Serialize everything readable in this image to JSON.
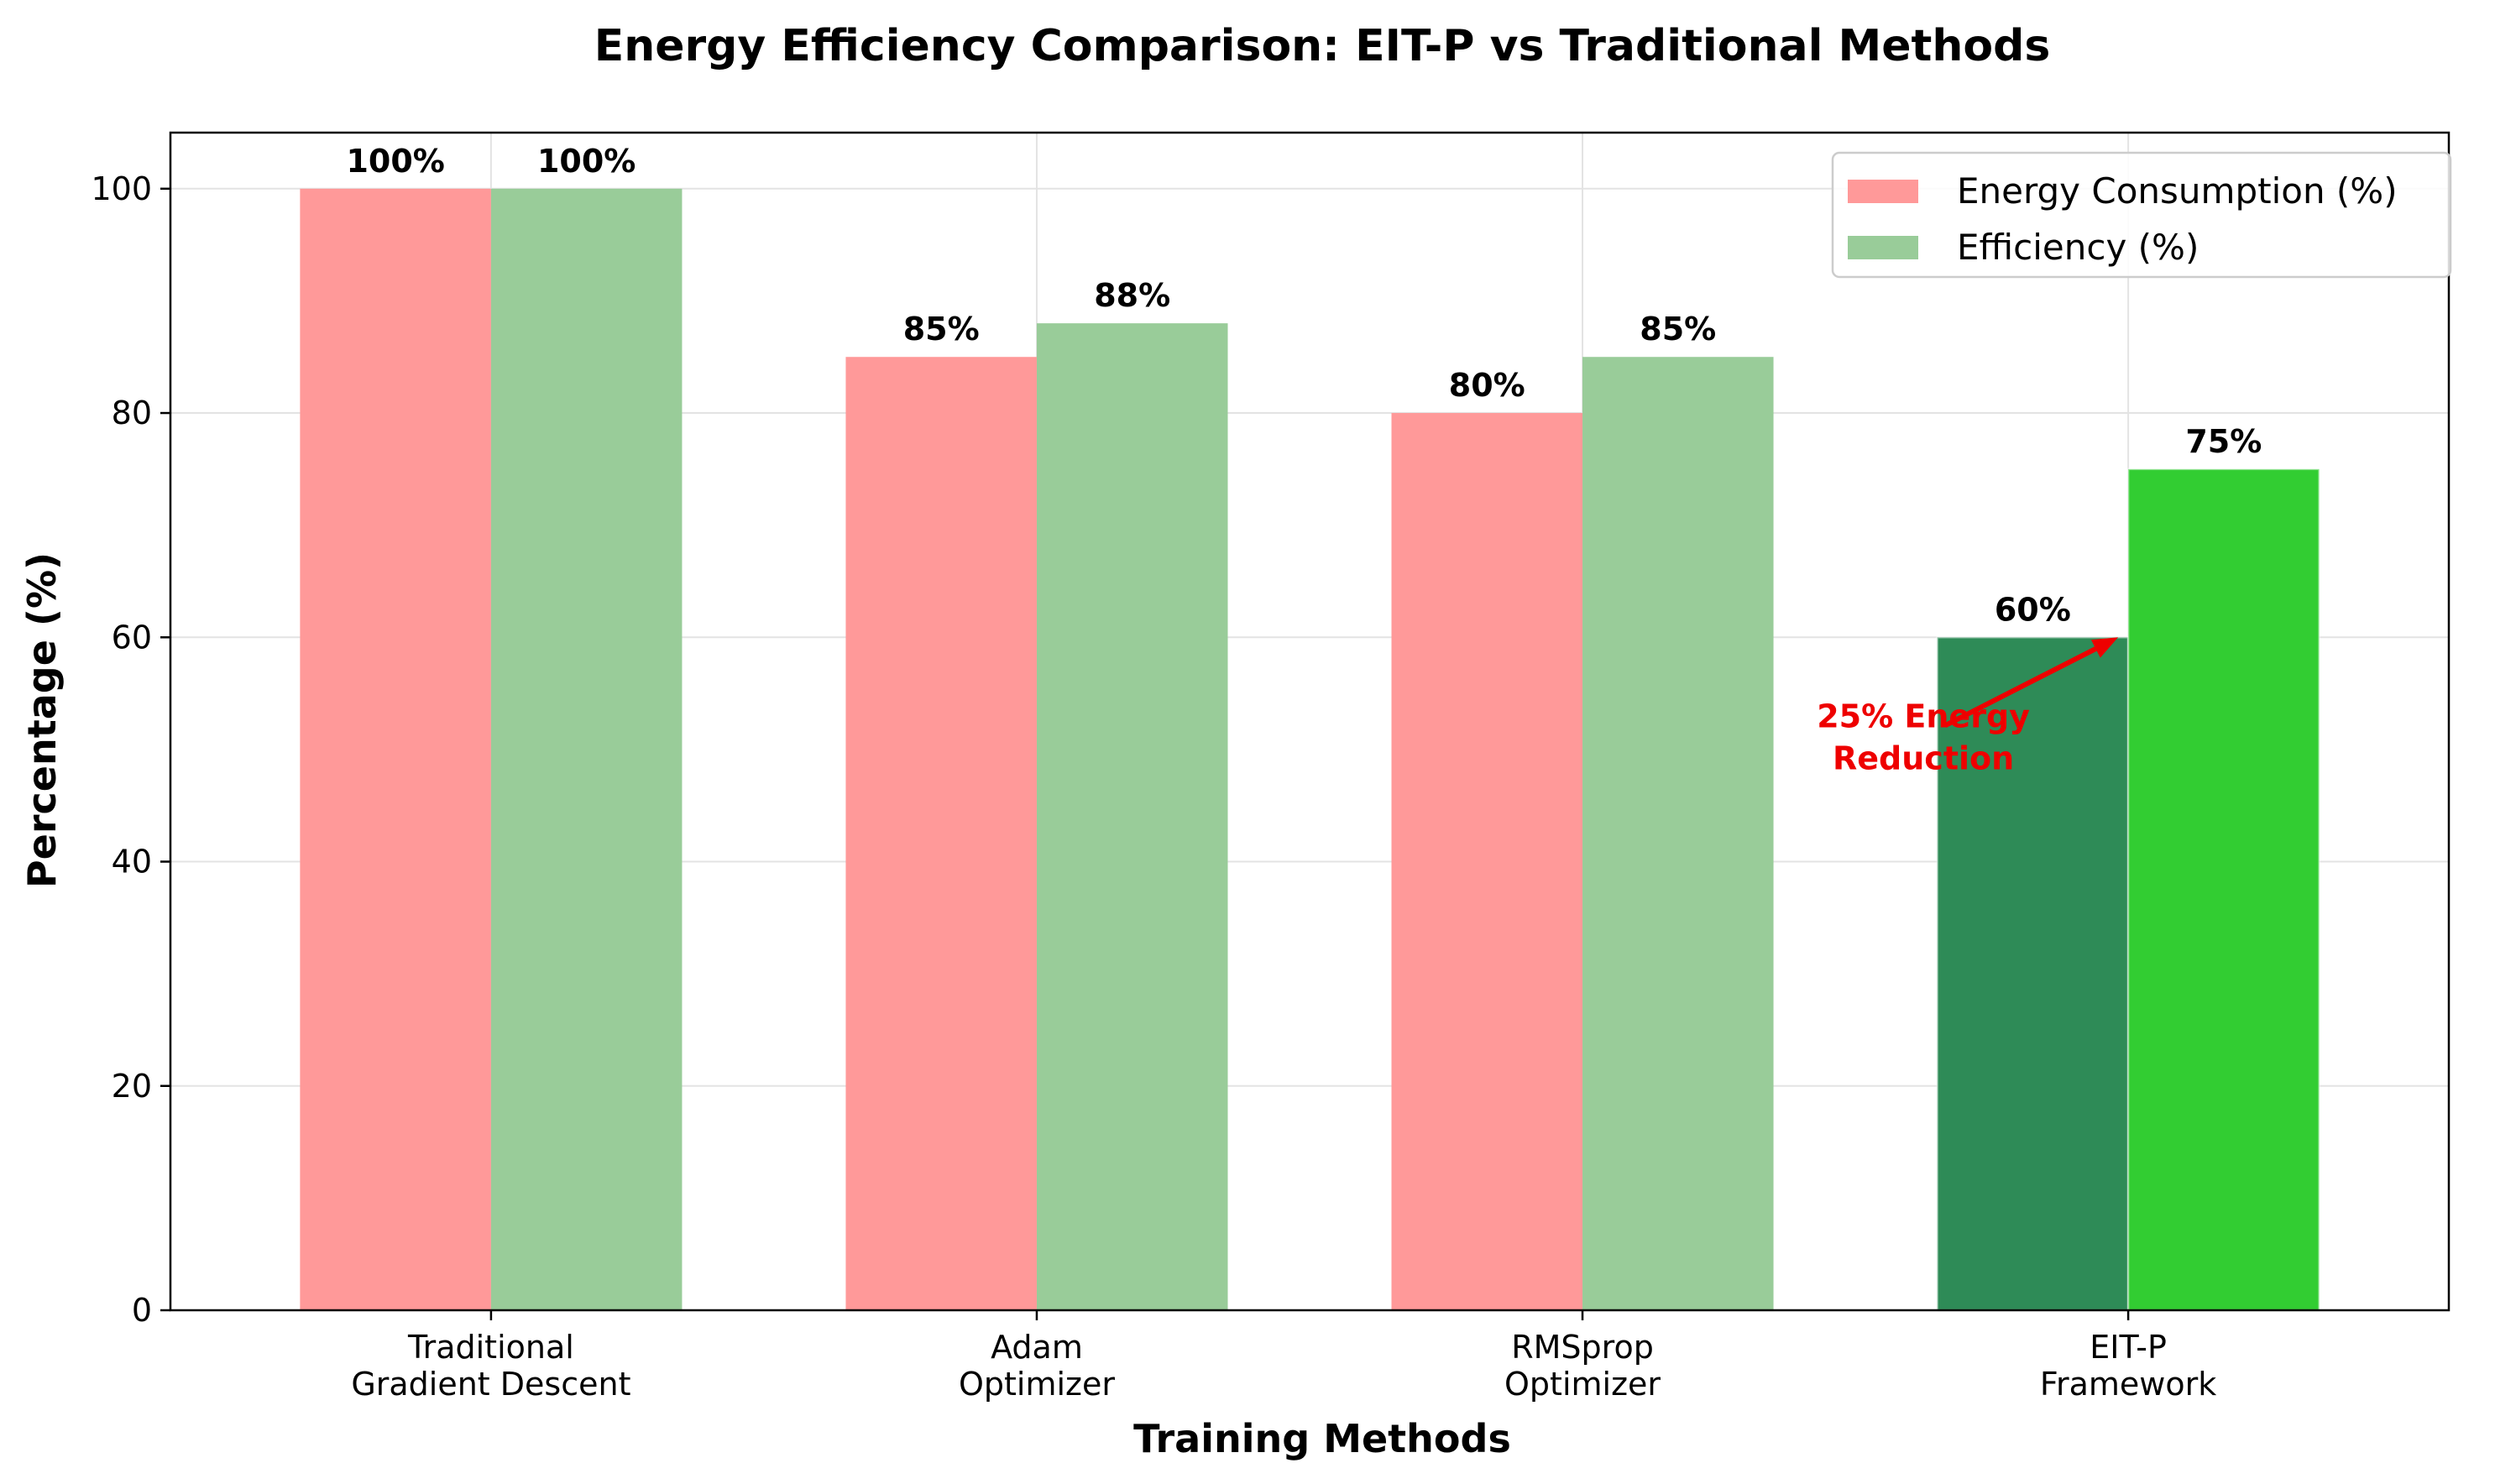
{
  "chart_data": {
    "type": "bar",
    "title": "Energy Efficiency Comparison: EIT-P vs Traditional Methods",
    "xlabel": "Training Methods",
    "ylabel": "Percentage (%)",
    "ylim": [
      0,
      105
    ],
    "yticks": [
      0,
      20,
      40,
      60,
      80,
      100
    ],
    "categories": [
      [
        "Traditional",
        "Gradient Descent"
      ],
      [
        "Adam",
        "Optimizer"
      ],
      [
        "RMSprop",
        "Optimizer"
      ],
      [
        "EIT-P",
        "Framework"
      ]
    ],
    "series": [
      {
        "name": "Energy Consumption (%)",
        "values": [
          100,
          85,
          80,
          60
        ],
        "labels": [
          "100%",
          "85%",
          "80%",
          "60%"
        ],
        "color": "#ff9999",
        "highlight_color": "#2e8b57"
      },
      {
        "name": "Efficiency (%)",
        "values": [
          100,
          88,
          85,
          75
        ],
        "labels": [
          "100%",
          "88%",
          "85%",
          "75%"
        ],
        "color": "#99cc99",
        "highlight_color": "#32cd32"
      }
    ],
    "highlight_category_index": 3,
    "grid": true,
    "legend": "upper-right",
    "annotation": {
      "lines": [
        "25% Energy",
        "Reduction"
      ],
      "color": "#ee0000"
    }
  }
}
